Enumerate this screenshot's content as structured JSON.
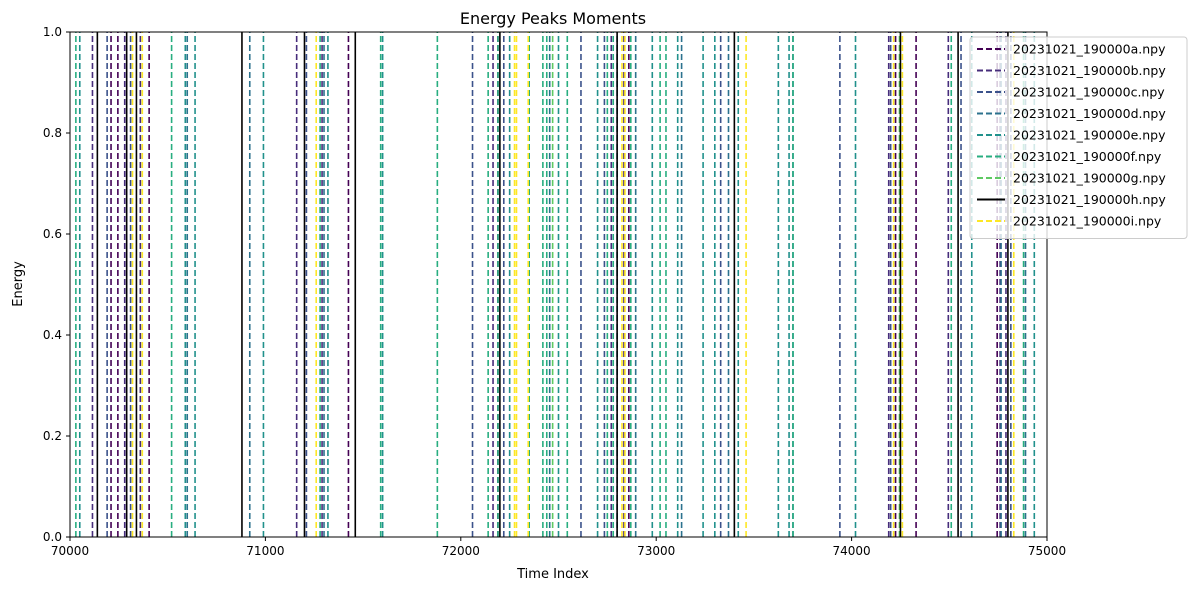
{
  "chart_data": {
    "type": "line",
    "title": "Energy Peaks Moments",
    "xlabel": "Time Index",
    "ylabel": "Energy",
    "xlim": [
      70000,
      75000
    ],
    "ylim": [
      0,
      1
    ],
    "x_ticks": [
      "70000",
      "71000",
      "72000",
      "73000",
      "74000",
      "75000"
    ],
    "y_ticks": [
      "0.0",
      "0.2",
      "0.4",
      "0.6",
      "0.8",
      "1.0"
    ],
    "grid": false,
    "legend_position": "top-right",
    "series": [
      {
        "name": "20231021_190000a.npy",
        "color": "#440154",
        "style": "dashed",
        "x": [
          70210,
          70245,
          70405,
          71425,
          72190,
          72860,
          74225,
          74330,
          74745
        ]
      },
      {
        "name": "20231021_190000b.npy",
        "color": "#472d7b",
        "style": "dashed",
        "x": [
          70115,
          70280,
          70360,
          71160,
          71290,
          72165,
          72770,
          72835,
          74190,
          74495,
          74760,
          74790
        ]
      },
      {
        "name": "20231021_190000c.npy",
        "color": "#3b528b",
        "style": "dashed",
        "x": [
          70190,
          70310,
          71210,
          72060,
          72220,
          72615,
          72735,
          73330,
          73940,
          74200,
          74560,
          74815
        ]
      },
      {
        "name": "20231021_190000d.npy",
        "color": "#2c728e",
        "style": "dashed",
        "x": [
          70600,
          70920,
          71300,
          72455,
          72800,
          72895,
          73130,
          73370,
          73700,
          74765,
          74890
        ]
      },
      {
        "name": "20231021_190000e.npy",
        "color": "#21918c",
        "style": "dashed",
        "x": [
          70050,
          70590,
          70640,
          70990,
          71320,
          71600,
          72250,
          72500,
          72700,
          72980,
          73110,
          73240,
          73300,
          73420,
          73625,
          73680,
          74020,
          74615,
          74935
        ]
      },
      {
        "name": "20231021_190000f.npy",
        "color": "#28ae80",
        "style": "dashed",
        "x": [
          70030,
          70520,
          71280,
          71590,
          71880,
          72140,
          72190,
          72350,
          72420,
          72440,
          72545,
          72750,
          72780,
          72870,
          73020,
          73050,
          73700,
          74510,
          74880
        ]
      },
      {
        "name": "20231021_190000g.npy",
        "color": "#5ec962",
        "style": "dashed",
        "x": [
          72470,
          74245
        ]
      },
      {
        "name": "20231021_190000h.npy",
        "color": "#000000",
        "style": "solid",
        "x": [
          70140,
          70290,
          70340,
          70880,
          71200,
          71460,
          72200,
          72800,
          73400,
          74250,
          74545,
          74800
        ]
      },
      {
        "name": "20231021_190000i.npy",
        "color": "#fde725",
        "style": "dashed",
        "x": [
          70320,
          70370,
          71260,
          72275,
          72285,
          72345,
          72825,
          72840,
          73460,
          74215,
          74260,
          74830
        ]
      }
    ]
  }
}
